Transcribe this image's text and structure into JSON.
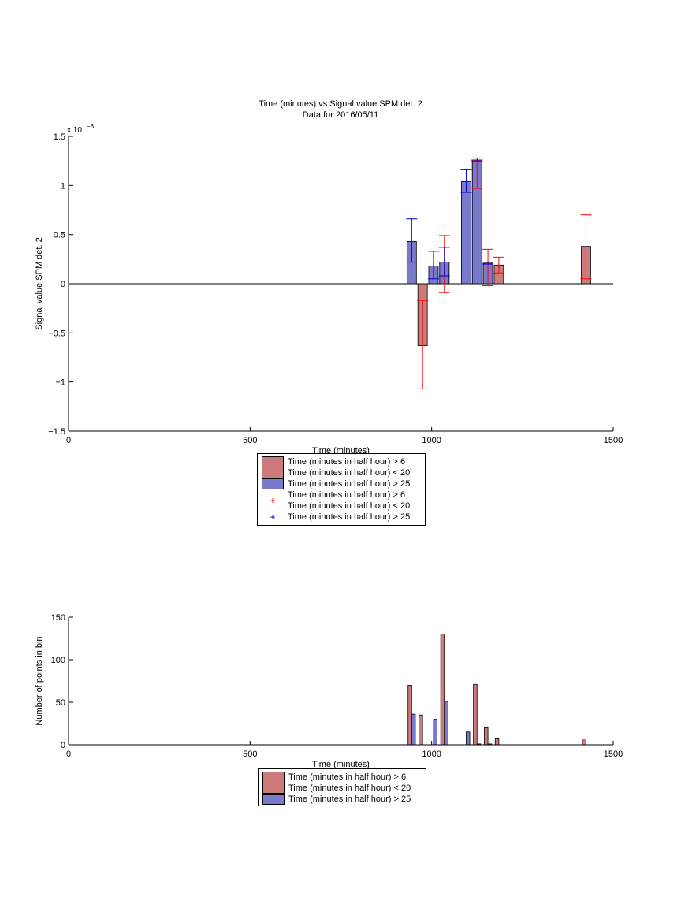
{
  "colors": {
    "red_fill": "#cc7a7a",
    "blue_fill": "#7a7acc",
    "red_err": "#ff0000",
    "blue_err": "#0000cc",
    "axis": "#000000"
  },
  "chart_data": [
    {
      "type": "bar",
      "title": "Time (minutes) vs Signal value SPM det. 2",
      "subtitle": "Data for 2016/05/11",
      "xlabel": "Time (minutes)",
      "ylabel": "Signal value SPM det. 2",
      "y_exponent_label": "x 10",
      "y_exponent_power": "−3",
      "xlim": [
        0,
        1500
      ],
      "ylim": [
        -1.5,
        1.5
      ],
      "xticks": [
        0,
        500,
        1000,
        1500
      ],
      "yticks": [
        -1.5,
        -1,
        -0.5,
        0,
        0.5,
        1,
        1.5
      ],
      "xtick_labels": [
        "0",
        "500",
        "1000",
        "1500"
      ],
      "ytick_labels": [
        "−1.5",
        "−1",
        "−0.5",
        "0",
        "0.5",
        "1",
        "1.5"
      ],
      "bar_width": 26,
      "series": [
        {
          "name": "Time (minutes in half hour) > 6\nTime (minutes in half hour) < 20",
          "color_key": "red",
          "bars": [
            {
              "x": 975,
              "y": -0.63,
              "err_lo": -1.07,
              "err_hi": -0.17
            },
            {
              "x": 1035,
              "y": 0.21,
              "err_lo": -0.09,
              "err_hi": 0.49
            },
            {
              "x": 1125,
              "y": 1.26,
              "err_lo": 0.97,
              "err_hi": 1.26
            },
            {
              "x": 1155,
              "y": 0.2,
              "err_lo": -0.02,
              "err_hi": 0.35
            },
            {
              "x": 1185,
              "y": 0.19,
              "err_lo": 0.11,
              "err_hi": 0.27
            },
            {
              "x": 1425,
              "y": 0.38,
              "err_lo": 0.05,
              "err_hi": 0.7
            }
          ]
        },
        {
          "name": "Time (minutes in half hour) > 25",
          "color_key": "blue",
          "bars": [
            {
              "x": 945,
              "y": 0.43,
              "err_lo": 0.22,
              "err_hi": 0.66
            },
            {
              "x": 1005,
              "y": 0.18,
              "err_lo": 0.05,
              "err_hi": 0.33
            },
            {
              "x": 1035,
              "y": 0.22,
              "err_lo": 0.08,
              "err_hi": 0.37
            },
            {
              "x": 1095,
              "y": 1.04,
              "err_lo": 0.93,
              "err_hi": 1.16
            },
            {
              "x": 1125,
              "y": 1.26,
              "err_lo": 1.25,
              "err_hi": 1.28
            },
            {
              "x": 1155,
              "y": 0.21,
              "err_lo": 0.2,
              "err_hi": 0.22
            }
          ]
        }
      ],
      "legend": [
        {
          "kind": "swatch",
          "color_key": "red",
          "label": "Time (minutes in half hour) > 6\nTime (minutes in half hour) < 20"
        },
        {
          "kind": "swatch",
          "color_key": "blue",
          "label": "Time (minutes in half hour) > 25"
        },
        {
          "kind": "marker",
          "color_key": "red",
          "marker": "+",
          "label": "Time (minutes in half hour) > 6\nTime (minutes in half hour) < 20"
        },
        {
          "kind": "marker",
          "color_key": "blue",
          "marker": "+",
          "label": "Time (minutes in half hour) > 25"
        }
      ]
    },
    {
      "type": "bar",
      "title": "",
      "xlabel": "Time (minutes)",
      "ylabel": "Number of points in bin",
      "xlim": [
        0,
        1500
      ],
      "ylim": [
        0,
        150
      ],
      "xticks": [
        0,
        500,
        1000,
        1500
      ],
      "yticks": [
        0,
        50,
        100,
        150
      ],
      "xtick_labels": [
        "0",
        "500",
        "1000",
        "1500"
      ],
      "ytick_labels": [
        "0",
        "50",
        "100",
        "150"
      ],
      "bar_width": 10,
      "series": [
        {
          "name": "Time (minutes in half hour) > 6\nTime (minutes in half hour) < 20",
          "color_key": "red",
          "bars": [
            {
              "x": 940,
              "y": 70
            },
            {
              "x": 970,
              "y": 35
            },
            {
              "x": 1030,
              "y": 130
            },
            {
              "x": 1120,
              "y": 71
            },
            {
              "x": 1150,
              "y": 21
            },
            {
              "x": 1180,
              "y": 8
            },
            {
              "x": 1420,
              "y": 7
            }
          ]
        },
        {
          "name": "Time (minutes in half hour) > 25",
          "color_key": "blue",
          "bars": [
            {
              "x": 950,
              "y": 36
            },
            {
              "x": 1010,
              "y": 30
            },
            {
              "x": 1040,
              "y": 51
            },
            {
              "x": 1100,
              "y": 15
            },
            {
              "x": 1130,
              "y": 1
            },
            {
              "x": 1160,
              "y": 1
            }
          ]
        }
      ],
      "legend": [
        {
          "kind": "swatch",
          "color_key": "red",
          "label": "Time (minutes in half hour) > 6\nTime (minutes in half hour) < 20"
        },
        {
          "kind": "swatch",
          "color_key": "blue",
          "label": "Time (minutes in half hour) > 25"
        }
      ]
    }
  ]
}
